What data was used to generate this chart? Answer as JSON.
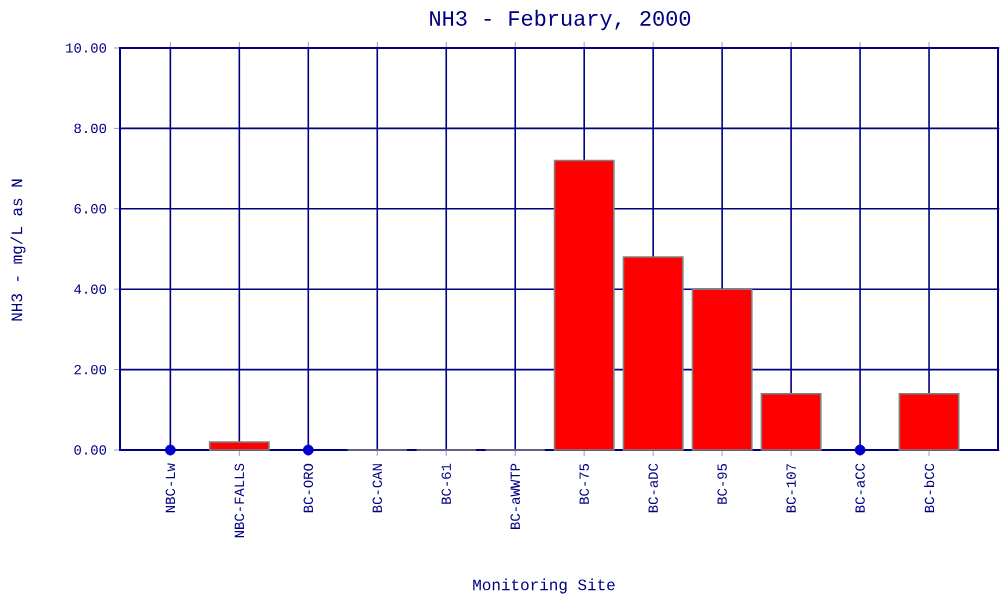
{
  "chart_data": {
    "type": "bar",
    "title": "NH3 - February, 2000",
    "xlabel": "Monitoring Site",
    "ylabel": "NH3 - mg/L as N",
    "categories": [
      "NBC-Lw",
      "NBC-FALLS",
      "BC-ORO",
      "BC-CAN",
      "BC-61",
      "BC-aWWTP",
      "BC-75",
      "BC-aDC",
      "BC-95",
      "BC-107",
      "BC-aCC",
      "BC-bCC"
    ],
    "series": [
      {
        "colors": [
          "#ff0000",
          "#ff0000",
          "#ff0000",
          "#808080",
          "#808080",
          "#808080",
          "#ff0000",
          "#ff0000",
          "#ff0000",
          "#ff0000",
          "#ff0000",
          "#ff0000"
        ],
        "values": [
          null,
          0.2,
          null,
          0,
          0,
          0,
          7.2,
          4.8,
          4.0,
          1.4,
          null,
          1.4
        ]
      },
      {
        "type": "scatter",
        "color": "#0000cc",
        "x": [
          "NBC-Lw",
          "BC-ORO",
          "BC-aCC"
        ],
        "values": [
          0,
          0,
          0
        ]
      }
    ],
    "ylim": [
      0,
      10
    ],
    "yticks": [
      {
        "value": 0,
        "label": "0.00"
      },
      {
        "value": 2,
        "label": "2.00"
      },
      {
        "value": 4,
        "label": "4.00"
      },
      {
        "value": 6,
        "label": "6.00"
      },
      {
        "value": 8,
        "label": "8.00"
      },
      {
        "value": 10,
        "label": "10.00"
      }
    ],
    "grid": true
  }
}
